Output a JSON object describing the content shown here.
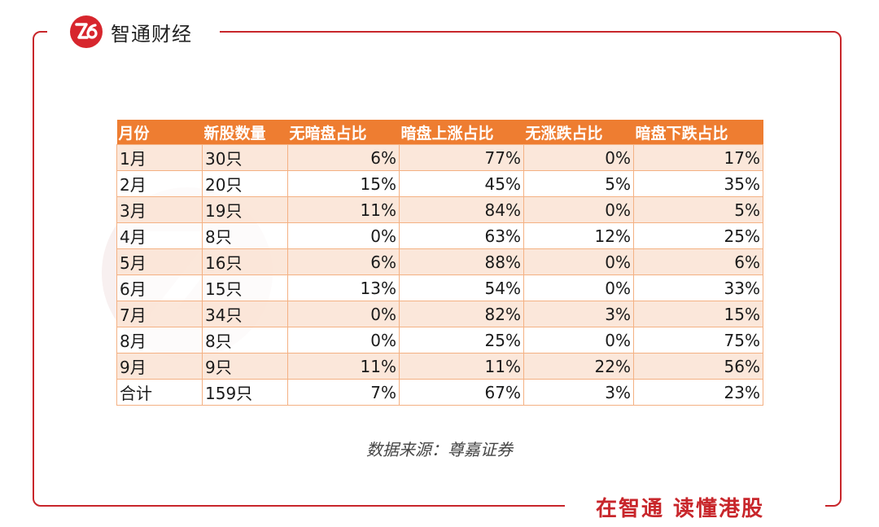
{
  "brand": {
    "name": "智通财经",
    "slogan": "在智通 读懂港股",
    "accent_color": "#c8262b",
    "logo_icon": "zhitong-logo-icon"
  },
  "table": {
    "headers": [
      "月份",
      "新股数量",
      "无暗盘占比",
      "暗盘上涨占比",
      "无涨跌占比",
      "暗盘下跌占比"
    ],
    "rows": [
      [
        "1月",
        "30只",
        "6%",
        "77%",
        "0%",
        "17%"
      ],
      [
        "2月",
        "20只",
        "15%",
        "45%",
        "5%",
        "35%"
      ],
      [
        "3月",
        "19只",
        "11%",
        "84%",
        "0%",
        "5%"
      ],
      [
        "4月",
        "8只",
        "0%",
        "63%",
        "12%",
        "25%"
      ],
      [
        "5月",
        "16只",
        "6%",
        "88%",
        "0%",
        "6%"
      ],
      [
        "6月",
        "15只",
        "13%",
        "54%",
        "0%",
        "33%"
      ],
      [
        "7月",
        "34只",
        "0%",
        "82%",
        "3%",
        "15%"
      ],
      [
        "8月",
        "8只",
        "0%",
        "25%",
        "0%",
        "75%"
      ],
      [
        "9月",
        "9只",
        "11%",
        "11%",
        "22%",
        "56%"
      ],
      [
        "合计",
        "159只",
        "7%",
        "67%",
        "3%",
        "23%"
      ]
    ],
    "header_color": "#ee7d31",
    "stripe_color": "#fbe4d6"
  },
  "source_note": "数据来源：尊嘉证券"
}
